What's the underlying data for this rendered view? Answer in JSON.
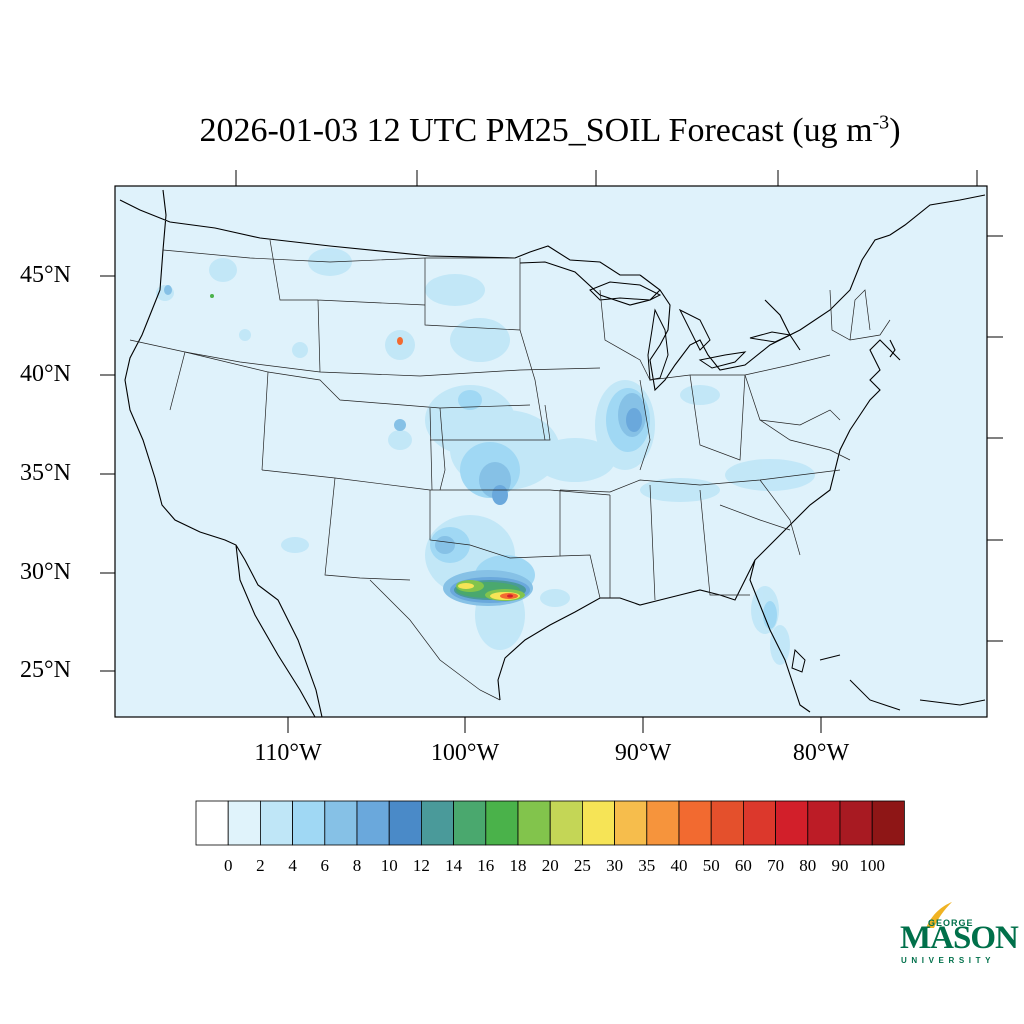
{
  "title": {
    "main": "2026-01-03 12 UTC PM25_SOIL Forecast (ug m",
    "superscript": "-3",
    "close": ")"
  },
  "map": {
    "background_color": "#dff2fb",
    "latitude_labels": [
      "45°N",
      "40°N",
      "35°N",
      "30°N",
      "25°N"
    ],
    "longitude_labels": [
      "110°W",
      "100°W",
      "90°W",
      "80°W"
    ]
  },
  "colorbar": {
    "labels": [
      "0",
      "2",
      "4",
      "6",
      "8",
      "10",
      "12",
      "14",
      "16",
      "18",
      "20",
      "25",
      "30",
      "35",
      "40",
      "50",
      "60",
      "70",
      "80",
      "90",
      "100"
    ],
    "colors": [
      "#ffffff",
      "#e0f3fb",
      "#bfe6f7",
      "#a0d8f4",
      "#86c1e6",
      "#6aa8dc",
      "#4a8ac8",
      "#4a9a9a",
      "#4aa86e",
      "#4ab24a",
      "#82c44c",
      "#c4d656",
      "#f6e456",
      "#f6bd4c",
      "#f6943c",
      "#f26a30",
      "#e4502c",
      "#dc382c",
      "#d21f2a",
      "#bc1c26",
      "#a81a22",
      "#8e1616"
    ]
  },
  "logo": {
    "line1": "GEORGE",
    "line2": "MASON",
    "line3": "UNIVERSITY",
    "brand_color": "#00704a",
    "accent_color": "#f0b323"
  }
}
